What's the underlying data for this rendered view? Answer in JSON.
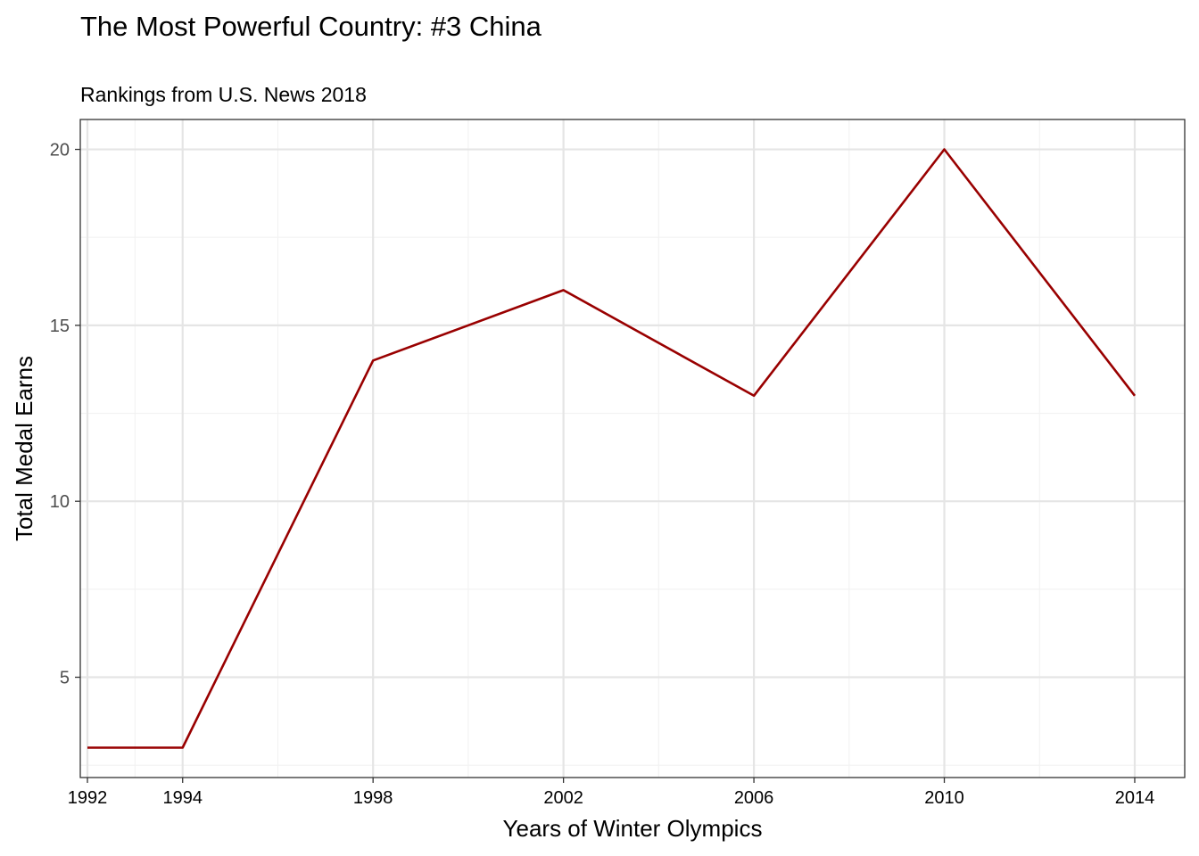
{
  "chart_data": {
    "type": "line",
    "title": "The Most Powerful Country: #3 China",
    "subtitle": "Rankings from U.S. News 2018",
    "xlabel": "Years of Winter Olympics",
    "ylabel": "Total Medal Earns",
    "x": [
      1992,
      1994,
      1998,
      2002,
      2006,
      2010,
      2014
    ],
    "values": [
      3,
      3,
      14,
      16,
      13,
      20,
      13
    ],
    "x_ticks": [
      "1992",
      "1994",
      "1998",
      "2002",
      "2006",
      "2010",
      "2014"
    ],
    "y_ticks": [
      "5",
      "10",
      "15",
      "20"
    ],
    "xlim": [
      1991.85,
      2015.05
    ],
    "ylim": [
      2.15,
      20.85
    ],
    "grid": true,
    "legend": "none",
    "colors": {
      "line": "#990000",
      "grid_major": "#e5e5e5",
      "grid_minor": "#f2f2f2",
      "panel_border": "#333333"
    }
  }
}
